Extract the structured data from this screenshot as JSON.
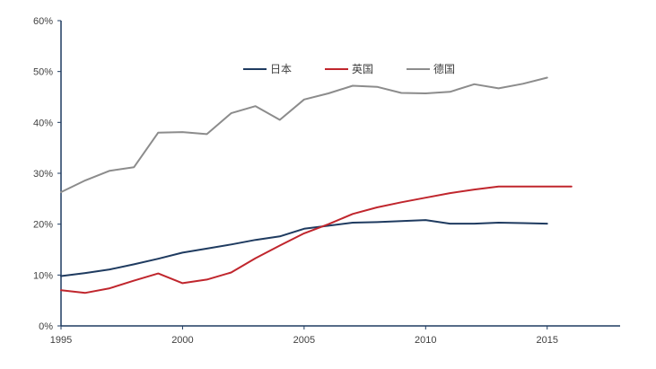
{
  "chart_data": {
    "type": "line",
    "title": "",
    "xlabel": "",
    "ylabel": "",
    "xlim": [
      1995,
      2018
    ],
    "ylim": [
      0,
      60
    ],
    "y_tick_values": [
      0,
      10,
      20,
      30,
      40,
      50,
      60
    ],
    "y_tick_labels": [
      "0%",
      "10%",
      "20%",
      "30%",
      "40%",
      "50%",
      "60%"
    ],
    "x_tick_values": [
      1995,
      2000,
      2005,
      2010,
      2015
    ],
    "x_tick_labels": [
      "1995",
      "2000",
      "2005",
      "2010",
      "2015"
    ],
    "grid": false,
    "legend_position": "top-center",
    "series": [
      {
        "name": "日本",
        "color": "#1f3b60",
        "x": [
          1995,
          1996,
          1997,
          1998,
          1999,
          2000,
          2001,
          2002,
          2003,
          2004,
          2005,
          2006,
          2007,
          2008,
          2009,
          2010,
          2011,
          2012,
          2013,
          2014,
          2015
        ],
        "values": [
          9.8,
          10.4,
          11.1,
          12.1,
          13.2,
          14.4,
          15.2,
          16.0,
          16.9,
          17.6,
          19.1,
          19.7,
          20.3,
          20.4,
          20.6,
          20.8,
          20.1,
          20.1,
          20.3,
          20.2,
          20.1
        ]
      },
      {
        "name": "英国",
        "color": "#c0262d",
        "x": [
          1995,
          1996,
          1997,
          1998,
          1999,
          2000,
          2001,
          2002,
          2003,
          2004,
          2005,
          2006,
          2007,
          2008,
          2009,
          2010,
          2011,
          2012,
          2013,
          2014,
          2015,
          2016
        ],
        "values": [
          7.0,
          6.5,
          7.4,
          8.9,
          10.3,
          8.4,
          9.1,
          10.5,
          13.3,
          15.8,
          18.2,
          20.0,
          22.0,
          23.3,
          24.3,
          25.2,
          26.1,
          26.8,
          27.4,
          27.4,
          27.4,
          27.4
        ]
      },
      {
        "name": "德国",
        "color": "#8c8c8c",
        "x": [
          1995,
          1996,
          1997,
          1998,
          1999,
          2000,
          2001,
          2002,
          2003,
          2004,
          2005,
          2006,
          2007,
          2008,
          2009,
          2010,
          2011,
          2012,
          2013,
          2014,
          2015
        ],
        "values": [
          26.3,
          28.6,
          30.5,
          31.2,
          38.0,
          38.1,
          37.7,
          41.8,
          43.2,
          40.5,
          44.5,
          45.7,
          47.2,
          47.0,
          45.8,
          45.7,
          46.0,
          47.5,
          46.7,
          47.6,
          48.8
        ]
      }
    ]
  }
}
